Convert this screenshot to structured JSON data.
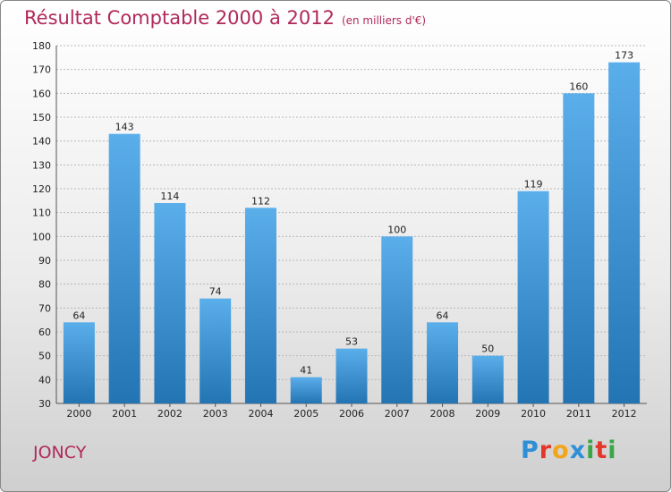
{
  "title": "Résultat Comptable 2000 à 2012",
  "subtitle": "(en milliers d'€)",
  "commune": "JONCY",
  "brand": {
    "letters": [
      {
        "ch": "P",
        "color": "#2e8fd6"
      },
      {
        "ch": "r",
        "color": "#e2372a"
      },
      {
        "ch": "o",
        "color": "#f2a51a"
      },
      {
        "ch": "x",
        "color": "#2e8fd6"
      },
      {
        "ch": "i",
        "color": "#3aa645"
      },
      {
        "ch": "t",
        "color": "#e2372a"
      },
      {
        "ch": "i",
        "color": "#3aa645"
      }
    ]
  },
  "colors": {
    "title": "#b0295a",
    "bar_light": "#5aaeea",
    "bar_dark": "#2374b3"
  },
  "chart_data": {
    "type": "bar",
    "categories": [
      "2000",
      "2001",
      "2002",
      "2003",
      "2004",
      "2005",
      "2006",
      "2007",
      "2008",
      "2009",
      "2010",
      "2011",
      "2012"
    ],
    "values": [
      64,
      143,
      114,
      74,
      112,
      41,
      53,
      100,
      64,
      50,
      119,
      160,
      173
    ],
    "ylim": [
      30,
      180
    ],
    "yticks": [
      30,
      40,
      50,
      60,
      70,
      80,
      90,
      100,
      110,
      120,
      130,
      140,
      150,
      160,
      170,
      180
    ],
    "grid": "horizontal dashed",
    "legend": "none"
  }
}
